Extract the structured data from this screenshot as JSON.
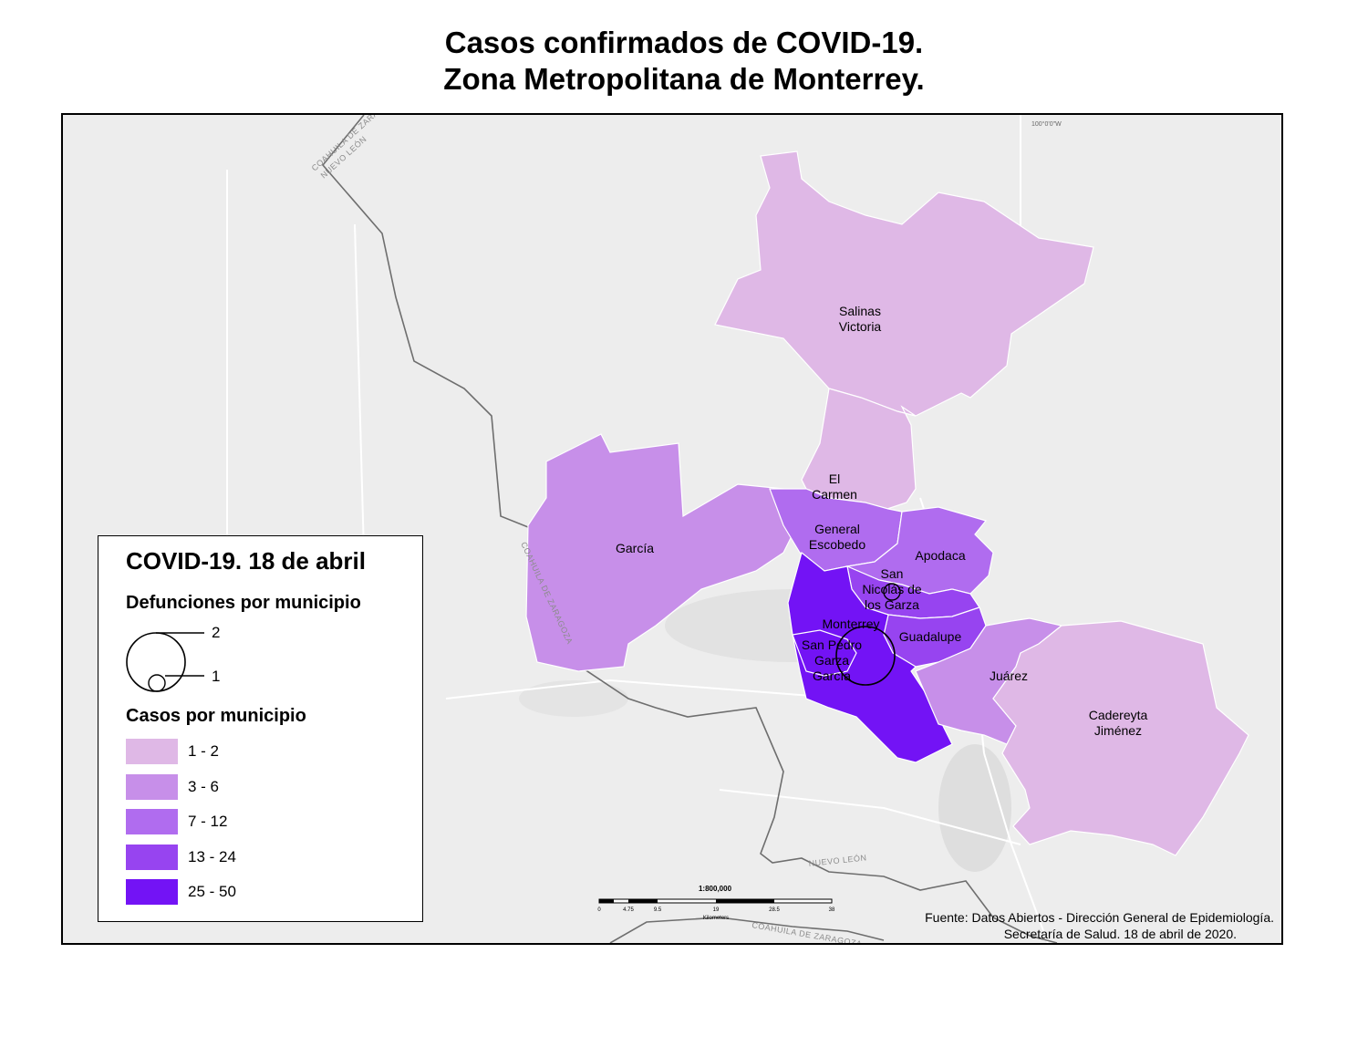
{
  "title": {
    "line1": "Casos confirmados de COVID-19.",
    "line2": "Zona Metropolitana de Monterrey."
  },
  "map": {
    "meridian_label": "100°0'0\"W",
    "state_labels": [
      "COAHUILA DE ZARAGOZA",
      "NUEVO LEÓN",
      "COAHUILA DE ZARAGOZA",
      "NUEVO LEÓN",
      "COAHUILA DE ZARAGOZA"
    ],
    "municipalities": [
      {
        "id": "salinas-victoria",
        "label_lines": [
          "Salinas",
          "Victoria"
        ],
        "case_class": 0,
        "color": "#dfb8e6"
      },
      {
        "id": "el-carmen",
        "label_lines": [
          "El",
          "Carmen"
        ],
        "case_class": 0,
        "color": "#dfb8e6"
      },
      {
        "id": "garcia",
        "label_lines": [
          "García"
        ],
        "case_class": 1,
        "color": "#c78fe9"
      },
      {
        "id": "general-escobedo",
        "label_lines": [
          "General",
          "Escobedo"
        ],
        "case_class": 2,
        "color": "#b06cef"
      },
      {
        "id": "apodaca",
        "label_lines": [
          "Apodaca"
        ],
        "case_class": 2,
        "color": "#b06cef"
      },
      {
        "id": "san-nicolas",
        "label_lines": [
          "San",
          "Nicolás de",
          "los Garza"
        ],
        "case_class": 3,
        "color": "#9744f0"
      },
      {
        "id": "guadalupe",
        "label_lines": [
          "Guadalupe"
        ],
        "case_class": 3,
        "color": "#9744f0"
      },
      {
        "id": "monterrey",
        "label_lines": [
          "Monterrey"
        ],
        "case_class": 4,
        "color": "#7313f5"
      },
      {
        "id": "san-pedro",
        "label_lines": [
          "San Pedro",
          "Garza",
          "García"
        ],
        "case_class": 4,
        "color": "#7313f5"
      },
      {
        "id": "juarez",
        "label_lines": [
          "Juárez"
        ],
        "case_class": 1,
        "color": "#c78fe9"
      },
      {
        "id": "cadereyta",
        "label_lines": [
          "Cadereyta",
          "Jiménez"
        ],
        "case_class": 0,
        "color": "#dfb8e6"
      }
    ],
    "deaths": [
      {
        "municipality": "monterrey",
        "value": 2
      },
      {
        "municipality": "san-nicolas",
        "value": 1
      }
    ],
    "scale": {
      "ratio": "1:800,000",
      "ticks": [
        "0",
        "4.75",
        "9.5",
        "19",
        "28.5",
        "38"
      ],
      "unit": "Kilometers"
    }
  },
  "legend": {
    "title": "COVID-19. 18 de abril",
    "deaths_title": "Defunciones por municipio",
    "deaths_values": [
      "2",
      "1"
    ],
    "cases_title": "Casos por municipio",
    "classes": [
      {
        "label": "1 - 2",
        "color": "#dfb8e6"
      },
      {
        "label": "3 - 6",
        "color": "#c78fe9"
      },
      {
        "label": "7 - 12",
        "color": "#b06cef"
      },
      {
        "label": "13 - 24",
        "color": "#9744f0"
      },
      {
        "label": "25 - 50",
        "color": "#7313f5"
      }
    ]
  },
  "source": {
    "line1": "Fuente: Datos Abiertos - Dirección General de Epidemiología.",
    "line2": "Secretaría de Salud. 18 de abril de 2020."
  }
}
